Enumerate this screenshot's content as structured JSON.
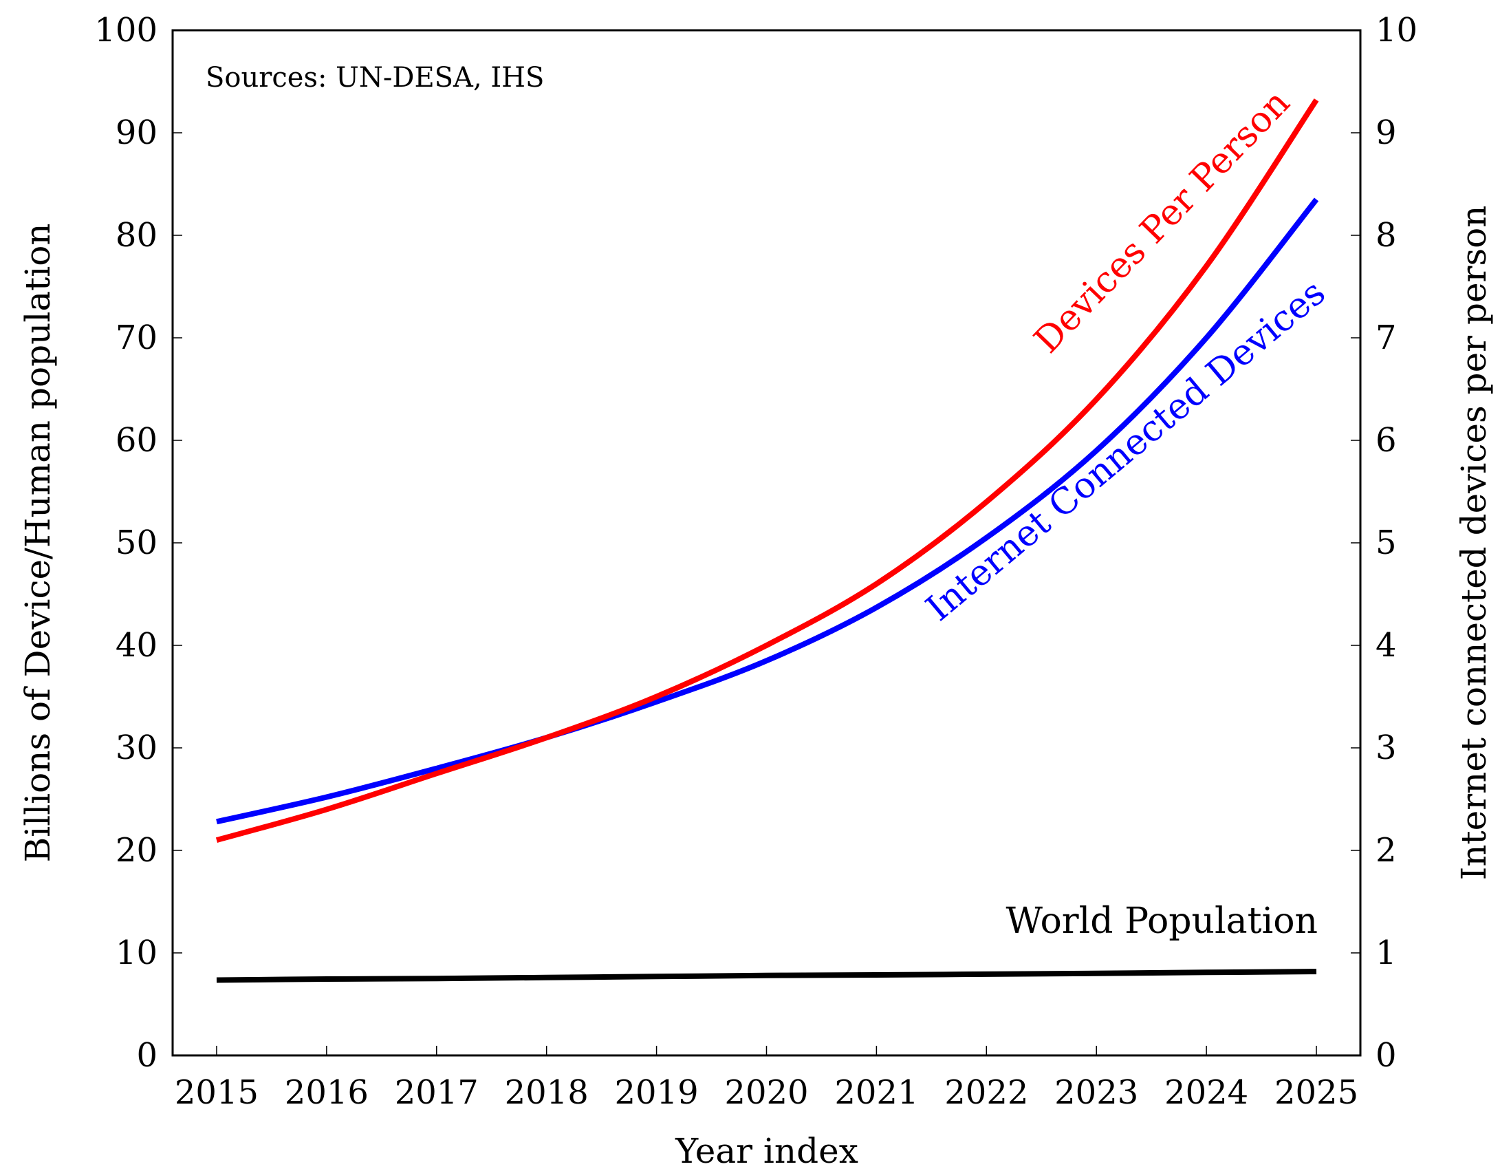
{
  "chart_data": {
    "type": "line",
    "title": "",
    "annotation": "Sources: UN-DESA, IHS",
    "xlabel": "Year index",
    "ylabel_left": "Billions of Device/Human population",
    "ylabel_right": "Internet connected devices per person",
    "categories": [
      "2015",
      "2016",
      "2017",
      "2018",
      "2019",
      "2020",
      "2021",
      "2022",
      "2023",
      "2024",
      "2025"
    ],
    "x": [
      2015,
      2016,
      2017,
      2018,
      2019,
      2020,
      2021,
      2022,
      2023,
      2024,
      2025
    ],
    "xlim": [
      2014.6,
      2025.4
    ],
    "ylim_left": [
      0,
      100
    ],
    "ylim_right": [
      0,
      10
    ],
    "left_ticks": [
      "0",
      "10",
      "20",
      "30",
      "40",
      "50",
      "60",
      "70",
      "80",
      "90",
      "100"
    ],
    "right_ticks": [
      "0",
      "1",
      "2",
      "3",
      "4",
      "5",
      "6",
      "7",
      "8",
      "9",
      "10"
    ],
    "series": [
      {
        "name": "Devices Per Person",
        "axis": "right",
        "color": "#ff0000",
        "values": [
          2.1,
          2.4,
          2.75,
          3.1,
          3.5,
          4.0,
          4.6,
          5.4,
          6.4,
          7.7,
          9.32
        ]
      },
      {
        "name": "Internet Connected Devices",
        "axis": "left",
        "color": "#0000ff",
        "values": [
          22.8,
          25.2,
          28.0,
          31.0,
          34.5,
          38.5,
          43.7,
          50.5,
          59.0,
          70.0,
          83.5
        ]
      },
      {
        "name": "World Population",
        "axis": "left",
        "color": "#000000",
        "values": [
          7.35,
          7.45,
          7.5,
          7.6,
          7.7,
          7.8,
          7.85,
          7.93,
          8.0,
          8.1,
          8.18
        ]
      }
    ]
  }
}
